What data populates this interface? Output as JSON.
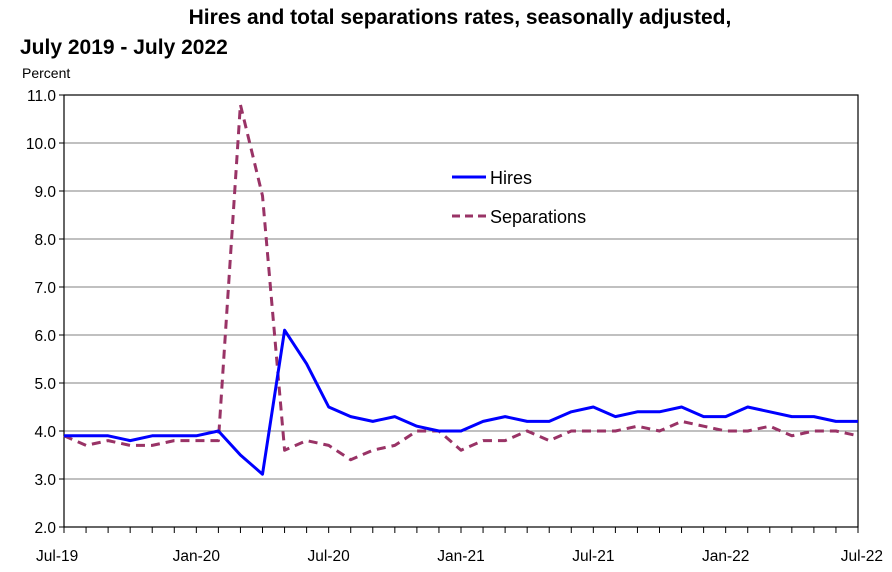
{
  "chart_data": {
    "type": "line",
    "title_line1": "Hires and total separations rates, seasonally adjusted,",
    "title_line2": "July 2019 - July 2022",
    "ylabel": "Percent",
    "xlabel": "",
    "ylim": [
      2.0,
      11.0
    ],
    "y_ticks": [
      "2.0",
      "3.0",
      "4.0",
      "5.0",
      "6.0",
      "7.0",
      "8.0",
      "9.0",
      "10.0",
      "11.0"
    ],
    "x_tick_labels": [
      "Jul-19",
      "Jan-20",
      "Jul-20",
      "Jan-21",
      "Jul-21",
      "Jan-22",
      "Jul-22"
    ],
    "x": [
      "Jul-19",
      "Aug-19",
      "Sep-19",
      "Oct-19",
      "Nov-19",
      "Dec-19",
      "Jan-20",
      "Feb-20",
      "Mar-20",
      "Apr-20",
      "May-20",
      "Jun-20",
      "Jul-20",
      "Aug-20",
      "Sep-20",
      "Oct-20",
      "Nov-20",
      "Dec-20",
      "Jan-21",
      "Feb-21",
      "Mar-21",
      "Apr-21",
      "May-21",
      "Jun-21",
      "Jul-21",
      "Aug-21",
      "Sep-21",
      "Oct-21",
      "Nov-21",
      "Dec-21",
      "Jan-22",
      "Feb-22",
      "Mar-22",
      "Apr-22",
      "May-22",
      "Jun-22",
      "Jul-22"
    ],
    "grid": true,
    "legend_position": "upper-middle",
    "series": [
      {
        "name": "Hires",
        "color": "#0000ff",
        "style": "solid",
        "values": [
          3.9,
          3.9,
          3.9,
          3.8,
          3.9,
          3.9,
          3.9,
          4.0,
          3.5,
          3.1,
          6.1,
          5.4,
          4.5,
          4.3,
          4.2,
          4.3,
          4.1,
          4.0,
          4.0,
          4.2,
          4.3,
          4.2,
          4.2,
          4.4,
          4.5,
          4.3,
          4.4,
          4.4,
          4.5,
          4.3,
          4.3,
          4.5,
          4.4,
          4.3,
          4.3,
          4.2,
          4.2
        ]
      },
      {
        "name": "Separations",
        "color": "#993366",
        "style": "dashed",
        "values": [
          3.9,
          3.7,
          3.8,
          3.7,
          3.7,
          3.8,
          3.8,
          3.8,
          10.8,
          8.9,
          3.6,
          3.8,
          3.7,
          3.4,
          3.6,
          3.7,
          4.0,
          4.0,
          3.6,
          3.8,
          3.8,
          4.0,
          3.8,
          4.0,
          4.0,
          4.0,
          4.1,
          4.0,
          4.2,
          4.1,
          4.0,
          4.0,
          4.1,
          3.9,
          4.0,
          4.0,
          3.9
        ]
      }
    ]
  }
}
